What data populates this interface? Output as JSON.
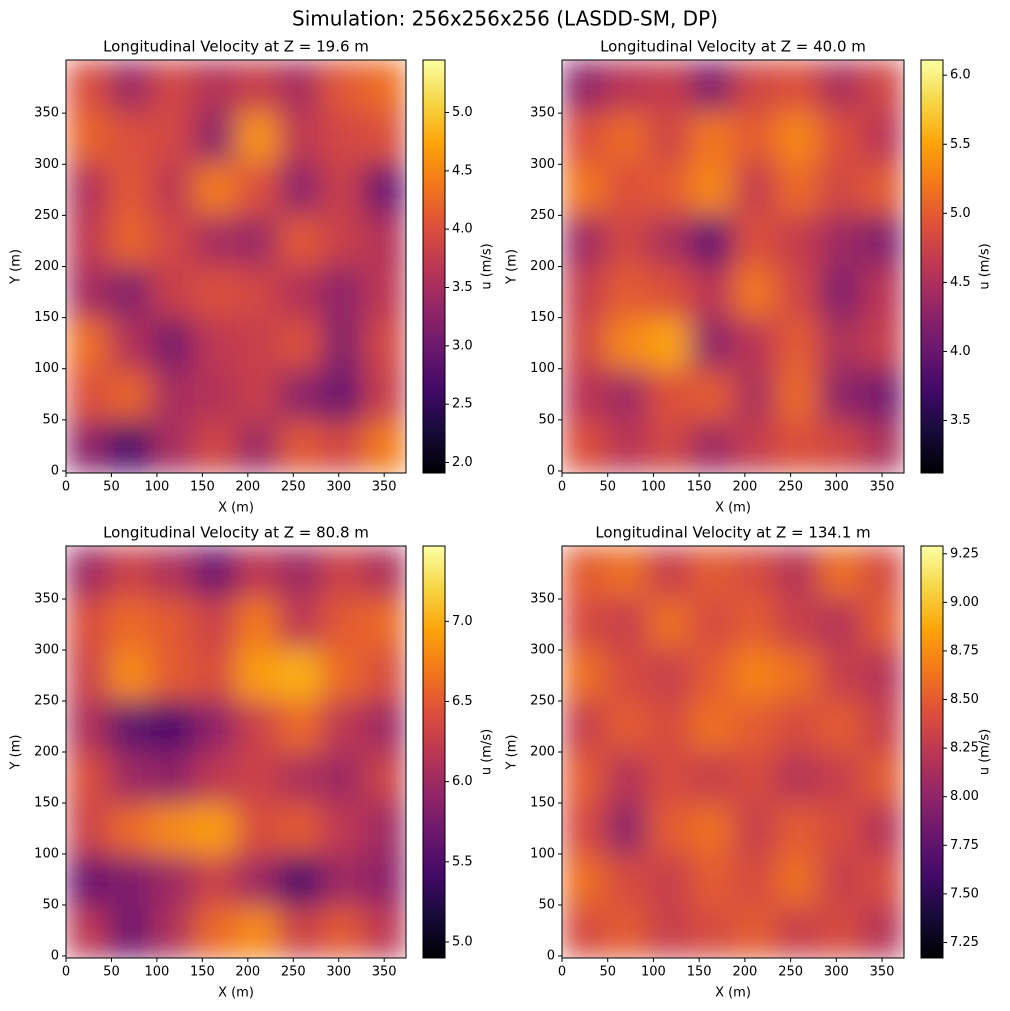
{
  "title": "Simulation: 256x256x256 (LASDD-SM, DP)",
  "chart_data": [
    {
      "type": "heatmap",
      "title": "Longitudinal Velocity at Z = 19.6 m",
      "xlabel": "X (m)",
      "ylabel": "Y (m)",
      "colorbar_label": "u (m/s)",
      "colormap": "inferno",
      "xlim": [
        0,
        374
      ],
      "ylim": [
        -2,
        402
      ],
      "xticks": [
        0,
        50,
        100,
        150,
        200,
        250,
        300,
        350
      ],
      "yticks": [
        0,
        50,
        100,
        150,
        200,
        250,
        300,
        350
      ],
      "clim": [
        1.91,
        5.45
      ],
      "cticks": [
        {
          "value": 2,
          "label": "2.0"
        },
        2.5,
        {
          "value": 3,
          "label": "3.0"
        },
        3.5,
        {
          "value": 4,
          "label": "4.0"
        },
        4.5,
        {
          "value": 5,
          "label": "5.0"
        }
      ],
      "z": [
        [
          4.0,
          3.4,
          3.9,
          3.6,
          3.8,
          3.5,
          4.1,
          4.3
        ],
        [
          4.2,
          4.0,
          3.9,
          3.3,
          4.6,
          3.7,
          3.9,
          4.0
        ],
        [
          3.6,
          4.1,
          3.7,
          4.4,
          4.0,
          3.3,
          3.8,
          3.0
        ],
        [
          3.7,
          4.2,
          3.9,
          3.5,
          3.4,
          4.1,
          3.8,
          3.6
        ],
        [
          3.5,
          3.2,
          3.8,
          4.0,
          3.9,
          3.6,
          3.3,
          3.7
        ],
        [
          4.3,
          3.6,
          3.1,
          3.7,
          3.8,
          4.0,
          3.2,
          3.9
        ],
        [
          4.0,
          4.2,
          3.5,
          3.6,
          3.8,
          3.3,
          3.0,
          3.8
        ],
        [
          3.3,
          2.7,
          3.5,
          3.9,
          3.4,
          4.1,
          3.9,
          4.4
        ]
      ]
    },
    {
      "type": "heatmap",
      "title": "Longitudinal Velocity at Z = 40.0 m",
      "xlabel": "X (m)",
      "ylabel": "Y (m)",
      "colorbar_label": "u (m/s)",
      "colormap": "inferno",
      "xlim": [
        0,
        374
      ],
      "ylim": [
        -2,
        402
      ],
      "xticks": [
        0,
        50,
        100,
        150,
        200,
        250,
        300,
        350
      ],
      "yticks": [
        0,
        50,
        100,
        150,
        200,
        250,
        300,
        350
      ],
      "clim": [
        3.12,
        6.11
      ],
      "cticks": [
        3.5,
        {
          "value": 4,
          "label": "4.0"
        },
        4.5,
        {
          "value": 5,
          "label": "5.0"
        },
        5.5,
        {
          "value": 6,
          "label": "6.0"
        }
      ],
      "z": [
        [
          4.3,
          4.6,
          4.7,
          4.2,
          4.8,
          4.9,
          4.5,
          4.8
        ],
        [
          4.9,
          5.1,
          4.8,
          5.2,
          5.0,
          5.3,
          4.9,
          4.6
        ],
        [
          5.2,
          4.9,
          5.0,
          5.3,
          4.7,
          5.1,
          4.8,
          5.0
        ],
        [
          4.4,
          4.8,
          4.5,
          4.0,
          4.9,
          4.7,
          4.4,
          4.2
        ],
        [
          4.7,
          5.0,
          4.9,
          4.6,
          5.2,
          4.8,
          4.2,
          4.6
        ],
        [
          4.8,
          5.3,
          5.5,
          4.3,
          4.6,
          5.0,
          4.5,
          4.7
        ],
        [
          4.6,
          4.4,
          4.9,
          5.0,
          4.5,
          5.1,
          4.3,
          4.1
        ],
        [
          4.9,
          4.6,
          4.8,
          4.4,
          4.7,
          4.9,
          4.8,
          4.5
        ]
      ]
    },
    {
      "type": "heatmap",
      "title": "Longitudinal Velocity at Z = 80.8 m",
      "xlabel": "X (m)",
      "ylabel": "Y (m)",
      "colorbar_label": "u (m/s)",
      "colormap": "inferno",
      "xlim": [
        0,
        374
      ],
      "ylim": [
        -2,
        402
      ],
      "xticks": [
        0,
        50,
        100,
        150,
        200,
        250,
        300,
        350
      ],
      "yticks": [
        0,
        50,
        100,
        150,
        200,
        250,
        300,
        350
      ],
      "clim": [
        4.9,
        7.47
      ],
      "cticks": [
        {
          "value": 5,
          "label": "5.0"
        },
        5.5,
        {
          "value": 6,
          "label": "6.0"
        },
        6.5,
        {
          "value": 7,
          "label": "7.0"
        }
      ],
      "z": [
        [
          6.0,
          6.3,
          6.1,
          5.7,
          6.2,
          6.0,
          6.3,
          6.1
        ],
        [
          6.4,
          6.6,
          6.5,
          6.3,
          6.7,
          6.2,
          6.5,
          6.6
        ],
        [
          6.3,
          6.8,
          6.5,
          6.4,
          6.9,
          7.0,
          6.6,
          6.4
        ],
        [
          6.1,
          5.6,
          5.5,
          5.9,
          6.3,
          6.6,
          6.2,
          6.0
        ],
        [
          6.4,
          6.0,
          5.9,
          6.2,
          6.3,
          6.1,
          6.0,
          6.3
        ],
        [
          6.3,
          6.6,
          6.8,
          6.9,
          6.4,
          6.5,
          6.2,
          6.0
        ],
        [
          5.7,
          5.8,
          6.0,
          6.3,
          6.0,
          5.5,
          6.0,
          5.9
        ],
        [
          6.2,
          5.7,
          6.1,
          6.6,
          6.8,
          6.3,
          6.5,
          6.2
        ]
      ]
    },
    {
      "type": "heatmap",
      "title": "Longitudinal Velocity at Z = 134.1 m",
      "xlabel": "X (m)",
      "ylabel": "Y (m)",
      "colorbar_label": "u (m/s)",
      "colormap": "inferno",
      "xlim": [
        0,
        374
      ],
      "ylim": [
        -2,
        402
      ],
      "xticks": [
        0,
        50,
        100,
        150,
        200,
        250,
        300,
        350
      ],
      "yticks": [
        0,
        50,
        100,
        150,
        200,
        250,
        300,
        350
      ],
      "clim": [
        7.17,
        9.29
      ],
      "cticks": [
        7.25,
        {
          "value": 7.5,
          "label": "7.50"
        },
        7.75,
        {
          "value": 8,
          "label": "8.00"
        },
        8.25,
        {
          "value": 8.5,
          "label": "8.50"
        },
        8.75,
        {
          "value": 9,
          "label": "9.00"
        },
        9.25
      ],
      "z": [
        [
          8.5,
          8.6,
          8.3,
          8.5,
          8.4,
          8.2,
          8.6,
          8.4
        ],
        [
          8.4,
          8.3,
          8.6,
          8.4,
          8.5,
          8.3,
          8.2,
          8.5
        ],
        [
          8.6,
          8.4,
          8.3,
          8.5,
          8.7,
          8.6,
          8.3,
          8.2
        ],
        [
          8.3,
          8.5,
          8.4,
          8.6,
          8.5,
          8.4,
          8.5,
          8.3
        ],
        [
          8.5,
          8.2,
          8.4,
          8.3,
          8.4,
          8.2,
          8.3,
          8.5
        ],
        [
          8.4,
          8.0,
          8.5,
          8.6,
          8.3,
          8.5,
          8.4,
          8.2
        ],
        [
          8.6,
          8.4,
          8.3,
          8.5,
          8.4,
          8.6,
          8.3,
          8.4
        ],
        [
          8.4,
          8.5,
          8.3,
          8.4,
          8.5,
          8.3,
          8.4,
          8.2
        ]
      ]
    }
  ]
}
